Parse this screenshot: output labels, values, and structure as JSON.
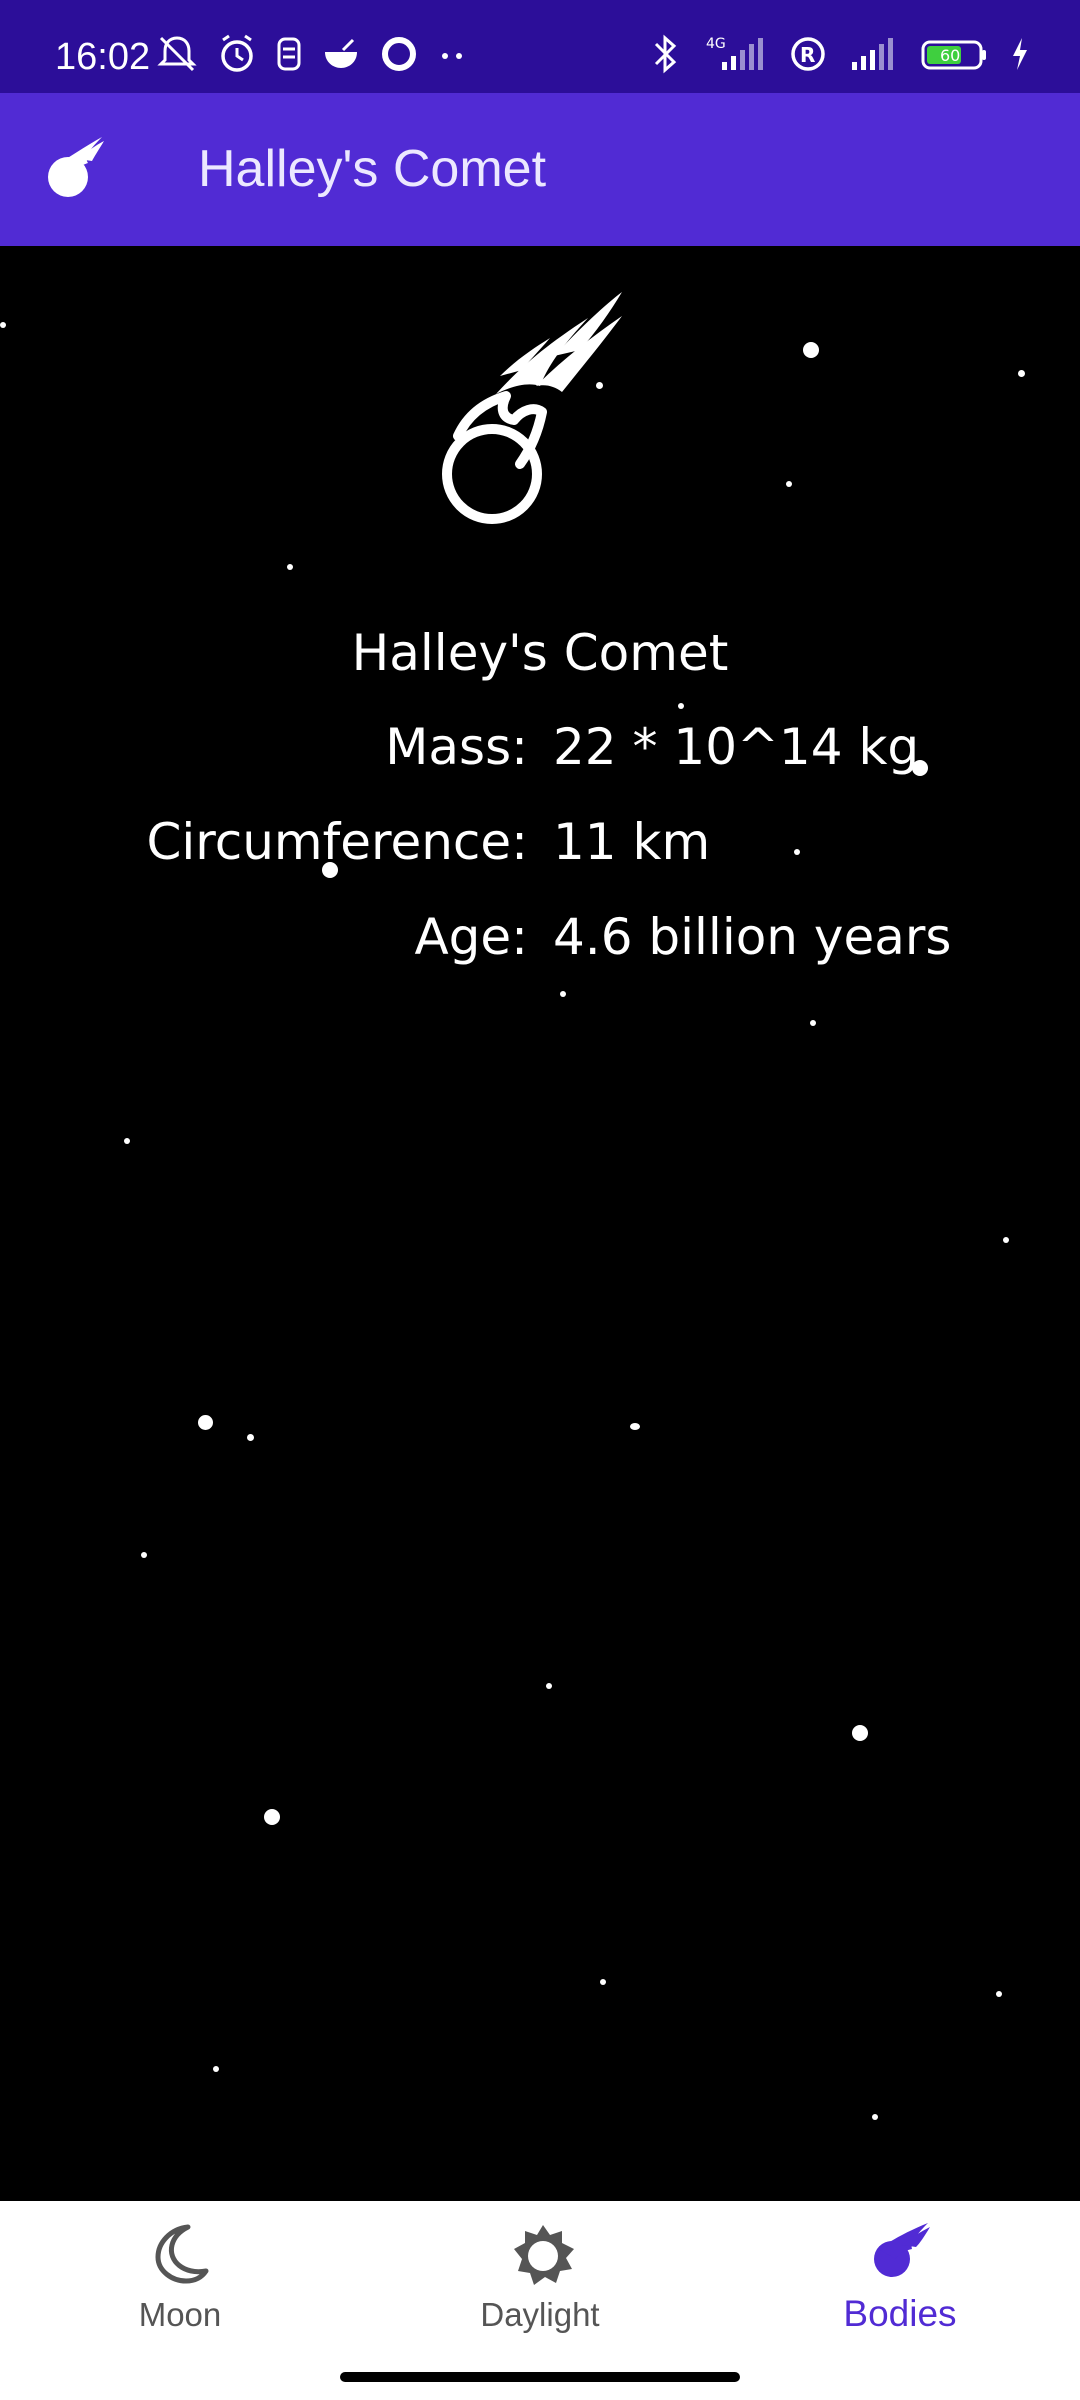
{
  "status_bar": {
    "time": "16:02",
    "battery": "60",
    "network": "4G"
  },
  "app_bar": {
    "title": "Halley's Comet",
    "icon": "comet-icon"
  },
  "body": {
    "name": "Halley's Comet",
    "rows": [
      {
        "label": "Mass:",
        "value": "22 * 10^14 kg"
      },
      {
        "label": "Circumference:",
        "value": "11 km"
      },
      {
        "label": "Age:",
        "value": "4.6 billion years"
      }
    ]
  },
  "bottom_nav": {
    "items": [
      {
        "label": "Moon",
        "icon": "moon-icon",
        "active": false
      },
      {
        "label": "Daylight",
        "icon": "sun-icon",
        "active": false
      },
      {
        "label": "Bodies",
        "icon": "comet-icon",
        "active": true
      }
    ]
  },
  "colors": {
    "status_bar": "#2c0e99",
    "app_bar": "#512bd4",
    "accent": "#512bd4",
    "inactive": "#555555"
  }
}
